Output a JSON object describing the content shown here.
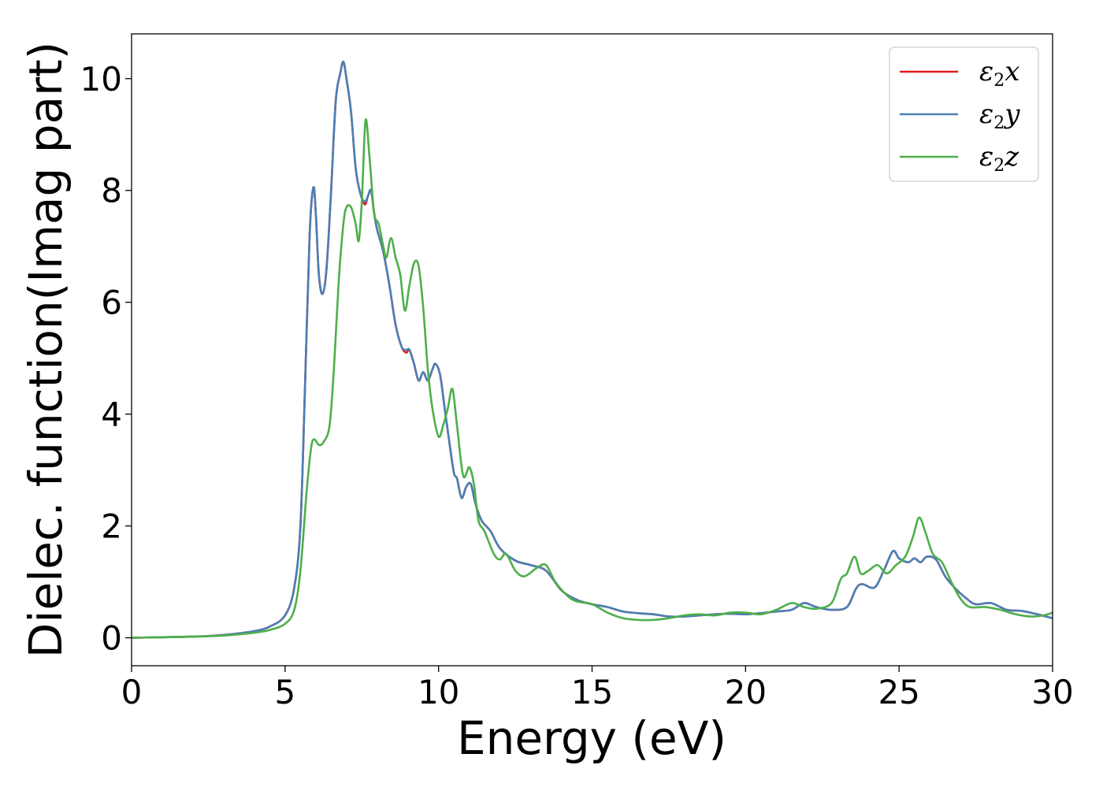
{
  "chart_data": {
    "type": "line",
    "xlabel": "Energy (eV)",
    "ylabel": "Dielec. function(Imag part)",
    "xlim": [
      0,
      30
    ],
    "ylim": [
      -0.5,
      10.8
    ],
    "xticks": [
      0,
      5,
      10,
      15,
      20,
      25,
      30
    ],
    "yticks": [
      0,
      2,
      4,
      6,
      8,
      10
    ],
    "xtick_labels": [
      "0",
      "5",
      "10",
      "15",
      "20",
      "25",
      "30"
    ],
    "ytick_labels": [
      "0",
      "2",
      "4",
      "6",
      "8",
      "10"
    ],
    "grid": false,
    "legend_position": "top-right",
    "series": [
      {
        "name": "ε2x",
        "symbol": "ε",
        "subscript": "2",
        "axis": "x",
        "color": "#e41a1c",
        "points": [
          [
            0,
            0.0
          ],
          [
            2,
            0.02
          ],
          [
            3,
            0.05
          ],
          [
            4,
            0.12
          ],
          [
            4.5,
            0.2
          ],
          [
            5.0,
            0.4
          ],
          [
            5.3,
            0.9
          ],
          [
            5.5,
            2.0
          ],
          [
            5.65,
            4.5
          ],
          [
            5.8,
            7.2
          ],
          [
            5.92,
            8.05
          ],
          [
            6.0,
            7.6
          ],
          [
            6.1,
            6.5
          ],
          [
            6.22,
            6.15
          ],
          [
            6.35,
            6.6
          ],
          [
            6.5,
            8.0
          ],
          [
            6.65,
            9.6
          ],
          [
            6.8,
            10.1
          ],
          [
            6.9,
            10.3
          ],
          [
            7.0,
            10.0
          ],
          [
            7.15,
            9.4
          ],
          [
            7.3,
            8.4
          ],
          [
            7.45,
            7.95
          ],
          [
            7.6,
            7.75
          ],
          [
            7.7,
            7.9
          ],
          [
            7.8,
            8.0
          ],
          [
            7.9,
            7.6
          ],
          [
            8.0,
            7.3
          ],
          [
            8.2,
            6.9
          ],
          [
            8.4,
            6.3
          ],
          [
            8.6,
            5.6
          ],
          [
            8.8,
            5.2
          ],
          [
            8.95,
            5.1
          ],
          [
            9.05,
            5.15
          ],
          [
            9.2,
            4.9
          ],
          [
            9.35,
            4.6
          ],
          [
            9.5,
            4.75
          ],
          [
            9.65,
            4.6
          ],
          [
            9.8,
            4.8
          ],
          [
            9.9,
            4.9
          ],
          [
            10.05,
            4.7
          ],
          [
            10.2,
            4.1
          ],
          [
            10.35,
            3.5
          ],
          [
            10.5,
            2.95
          ],
          [
            10.6,
            2.85
          ],
          [
            10.75,
            2.5
          ],
          [
            10.9,
            2.7
          ],
          [
            11.05,
            2.75
          ],
          [
            11.2,
            2.4
          ],
          [
            11.4,
            2.1
          ],
          [
            11.7,
            1.9
          ],
          [
            12.0,
            1.6
          ],
          [
            12.5,
            1.38
          ],
          [
            13.0,
            1.3
          ],
          [
            13.5,
            1.2
          ],
          [
            14.0,
            0.85
          ],
          [
            14.5,
            0.68
          ],
          [
            15.0,
            0.6
          ],
          [
            15.5,
            0.55
          ],
          [
            16.0,
            0.47
          ],
          [
            16.5,
            0.44
          ],
          [
            17.0,
            0.42
          ],
          [
            17.5,
            0.38
          ],
          [
            18.0,
            0.38
          ],
          [
            18.5,
            0.4
          ],
          [
            19.0,
            0.42
          ],
          [
            19.5,
            0.43
          ],
          [
            20.0,
            0.42
          ],
          [
            20.5,
            0.44
          ],
          [
            21.0,
            0.47
          ],
          [
            21.5,
            0.5
          ],
          [
            21.9,
            0.62
          ],
          [
            22.3,
            0.55
          ],
          [
            22.8,
            0.5
          ],
          [
            23.3,
            0.55
          ],
          [
            23.6,
            0.88
          ],
          [
            23.8,
            0.96
          ],
          [
            24.2,
            0.9
          ],
          [
            24.5,
            1.2
          ],
          [
            24.8,
            1.55
          ],
          [
            25.0,
            1.42
          ],
          [
            25.3,
            1.35
          ],
          [
            25.5,
            1.42
          ],
          [
            25.7,
            1.35
          ],
          [
            25.9,
            1.45
          ],
          [
            26.2,
            1.4
          ],
          [
            26.5,
            1.1
          ],
          [
            26.8,
            0.9
          ],
          [
            27.2,
            0.7
          ],
          [
            27.5,
            0.6
          ],
          [
            28.0,
            0.62
          ],
          [
            28.5,
            0.5
          ],
          [
            29.0,
            0.48
          ],
          [
            29.5,
            0.42
          ],
          [
            30.0,
            0.35
          ]
        ]
      },
      {
        "name": "ε2y",
        "symbol": "ε",
        "subscript": "2",
        "axis": "y",
        "color": "#4a7fb5",
        "points": [
          [
            0,
            0.0
          ],
          [
            2,
            0.02
          ],
          [
            3,
            0.05
          ],
          [
            4,
            0.12
          ],
          [
            4.5,
            0.2
          ],
          [
            5.0,
            0.4
          ],
          [
            5.3,
            0.9
          ],
          [
            5.5,
            2.0
          ],
          [
            5.65,
            4.5
          ],
          [
            5.8,
            7.2
          ],
          [
            5.92,
            8.05
          ],
          [
            6.0,
            7.6
          ],
          [
            6.1,
            6.5
          ],
          [
            6.22,
            6.15
          ],
          [
            6.35,
            6.6
          ],
          [
            6.5,
            8.0
          ],
          [
            6.65,
            9.6
          ],
          [
            6.8,
            10.1
          ],
          [
            6.9,
            10.3
          ],
          [
            7.0,
            10.0
          ],
          [
            7.15,
            9.4
          ],
          [
            7.3,
            8.4
          ],
          [
            7.45,
            7.95
          ],
          [
            7.6,
            7.8
          ],
          [
            7.7,
            7.9
          ],
          [
            7.8,
            8.0
          ],
          [
            7.9,
            7.6
          ],
          [
            8.0,
            7.3
          ],
          [
            8.2,
            6.9
          ],
          [
            8.4,
            6.3
          ],
          [
            8.6,
            5.6
          ],
          [
            8.8,
            5.2
          ],
          [
            8.95,
            5.15
          ],
          [
            9.05,
            5.15
          ],
          [
            9.2,
            4.9
          ],
          [
            9.35,
            4.6
          ],
          [
            9.5,
            4.75
          ],
          [
            9.65,
            4.6
          ],
          [
            9.8,
            4.8
          ],
          [
            9.9,
            4.9
          ],
          [
            10.05,
            4.7
          ],
          [
            10.2,
            4.1
          ],
          [
            10.35,
            3.5
          ],
          [
            10.5,
            2.95
          ],
          [
            10.6,
            2.85
          ],
          [
            10.75,
            2.5
          ],
          [
            10.9,
            2.7
          ],
          [
            11.05,
            2.75
          ],
          [
            11.2,
            2.4
          ],
          [
            11.4,
            2.1
          ],
          [
            11.7,
            1.9
          ],
          [
            12.0,
            1.6
          ],
          [
            12.5,
            1.38
          ],
          [
            13.0,
            1.3
          ],
          [
            13.5,
            1.2
          ],
          [
            14.0,
            0.85
          ],
          [
            14.5,
            0.68
          ],
          [
            15.0,
            0.6
          ],
          [
            15.5,
            0.55
          ],
          [
            16.0,
            0.47
          ],
          [
            16.5,
            0.44
          ],
          [
            17.0,
            0.42
          ],
          [
            17.5,
            0.38
          ],
          [
            18.0,
            0.38
          ],
          [
            18.5,
            0.4
          ],
          [
            19.0,
            0.42
          ],
          [
            19.5,
            0.43
          ],
          [
            20.0,
            0.42
          ],
          [
            20.5,
            0.44
          ],
          [
            21.0,
            0.47
          ],
          [
            21.5,
            0.5
          ],
          [
            21.9,
            0.62
          ],
          [
            22.3,
            0.55
          ],
          [
            22.8,
            0.5
          ],
          [
            23.3,
            0.55
          ],
          [
            23.6,
            0.88
          ],
          [
            23.8,
            0.96
          ],
          [
            24.2,
            0.9
          ],
          [
            24.5,
            1.2
          ],
          [
            24.8,
            1.55
          ],
          [
            25.0,
            1.42
          ],
          [
            25.3,
            1.35
          ],
          [
            25.5,
            1.42
          ],
          [
            25.7,
            1.35
          ],
          [
            25.9,
            1.45
          ],
          [
            26.2,
            1.4
          ],
          [
            26.5,
            1.1
          ],
          [
            26.8,
            0.9
          ],
          [
            27.2,
            0.7
          ],
          [
            27.5,
            0.6
          ],
          [
            28.0,
            0.62
          ],
          [
            28.5,
            0.5
          ],
          [
            29.0,
            0.48
          ],
          [
            29.5,
            0.42
          ],
          [
            30.0,
            0.35
          ]
        ]
      },
      {
        "name": "ε2z",
        "symbol": "ε",
        "subscript": "2",
        "axis": "z",
        "color": "#4daf4a",
        "points": [
          [
            0,
            0.0
          ],
          [
            2,
            0.02
          ],
          [
            3,
            0.04
          ],
          [
            4,
            0.09
          ],
          [
            4.5,
            0.14
          ],
          [
            5.0,
            0.25
          ],
          [
            5.3,
            0.5
          ],
          [
            5.5,
            1.2
          ],
          [
            5.7,
            2.6
          ],
          [
            5.85,
            3.4
          ],
          [
            5.95,
            3.55
          ],
          [
            6.1,
            3.45
          ],
          [
            6.25,
            3.5
          ],
          [
            6.45,
            3.8
          ],
          [
            6.6,
            4.9
          ],
          [
            6.75,
            6.4
          ],
          [
            6.9,
            7.4
          ],
          [
            7.0,
            7.7
          ],
          [
            7.15,
            7.7
          ],
          [
            7.3,
            7.4
          ],
          [
            7.4,
            7.1
          ],
          [
            7.5,
            7.8
          ],
          [
            7.62,
            9.25
          ],
          [
            7.75,
            8.6
          ],
          [
            7.9,
            7.6
          ],
          [
            8.05,
            7.4
          ],
          [
            8.2,
            7.0
          ],
          [
            8.3,
            6.8
          ],
          [
            8.45,
            7.15
          ],
          [
            8.6,
            6.8
          ],
          [
            8.75,
            6.5
          ],
          [
            8.9,
            5.85
          ],
          [
            9.05,
            6.3
          ],
          [
            9.2,
            6.7
          ],
          [
            9.35,
            6.65
          ],
          [
            9.5,
            5.9
          ],
          [
            9.65,
            4.8
          ],
          [
            9.8,
            4.1
          ],
          [
            10.0,
            3.6
          ],
          [
            10.15,
            3.8
          ],
          [
            10.3,
            4.1
          ],
          [
            10.45,
            4.45
          ],
          [
            10.6,
            3.8
          ],
          [
            10.8,
            2.9
          ],
          [
            11.0,
            3.05
          ],
          [
            11.15,
            2.75
          ],
          [
            11.3,
            2.1
          ],
          [
            11.5,
            1.9
          ],
          [
            11.8,
            1.5
          ],
          [
            12.0,
            1.4
          ],
          [
            12.2,
            1.5
          ],
          [
            12.5,
            1.2
          ],
          [
            12.8,
            1.1
          ],
          [
            13.2,
            1.25
          ],
          [
            13.5,
            1.3
          ],
          [
            13.8,
            1.0
          ],
          [
            14.2,
            0.75
          ],
          [
            14.5,
            0.65
          ],
          [
            15.0,
            0.6
          ],
          [
            15.5,
            0.45
          ],
          [
            16.0,
            0.35
          ],
          [
            16.5,
            0.32
          ],
          [
            17.0,
            0.32
          ],
          [
            17.5,
            0.35
          ],
          [
            18.0,
            0.4
          ],
          [
            18.5,
            0.42
          ],
          [
            19.0,
            0.4
          ],
          [
            19.5,
            0.45
          ],
          [
            20.0,
            0.45
          ],
          [
            20.5,
            0.42
          ],
          [
            21.0,
            0.5
          ],
          [
            21.5,
            0.62
          ],
          [
            21.9,
            0.55
          ],
          [
            22.3,
            0.52
          ],
          [
            22.8,
            0.62
          ],
          [
            23.1,
            1.05
          ],
          [
            23.3,
            1.15
          ],
          [
            23.55,
            1.45
          ],
          [
            23.75,
            1.15
          ],
          [
            24.0,
            1.2
          ],
          [
            24.3,
            1.3
          ],
          [
            24.6,
            1.15
          ],
          [
            24.9,
            1.3
          ],
          [
            25.2,
            1.45
          ],
          [
            25.45,
            1.8
          ],
          [
            25.65,
            2.15
          ],
          [
            25.85,
            1.9
          ],
          [
            26.1,
            1.5
          ],
          [
            26.4,
            1.35
          ],
          [
            26.7,
            1.0
          ],
          [
            27.0,
            0.7
          ],
          [
            27.3,
            0.55
          ],
          [
            27.8,
            0.55
          ],
          [
            28.3,
            0.5
          ],
          [
            28.8,
            0.42
          ],
          [
            29.3,
            0.38
          ],
          [
            29.7,
            0.4
          ],
          [
            30.0,
            0.45
          ]
        ]
      }
    ]
  }
}
